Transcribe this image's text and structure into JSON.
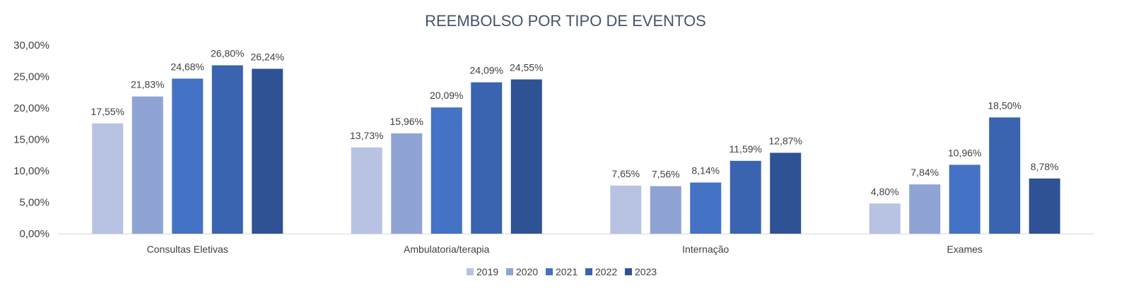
{
  "chart_data": {
    "type": "bar",
    "title": "REEMBOLSO POR TIPO DE EVENTOS",
    "xlabel": "",
    "ylabel": "",
    "categories": [
      "Consultas Eletivas",
      "Ambulatoria/terapia",
      "Internação",
      "Exames"
    ],
    "series": [
      {
        "name": "2019",
        "color": "#b8c3e3",
        "values": [
          17.55,
          13.73,
          7.65,
          4.8
        ],
        "labels": [
          "17,55%",
          "13,73%",
          "7,65%",
          "4,80%"
        ]
      },
      {
        "name": "2020",
        "color": "#8fa3d5",
        "values": [
          21.83,
          15.96,
          7.56,
          7.84
        ],
        "labels": [
          "21,83%",
          "15,96%",
          "7,56%",
          "7,84%"
        ]
      },
      {
        "name": "2021",
        "color": "#4472c4",
        "values": [
          24.68,
          20.09,
          8.14,
          10.96
        ],
        "labels": [
          "24,68%",
          "20,09%",
          "8,14%",
          "10,96%"
        ]
      },
      {
        "name": "2022",
        "color": "#3a63b0",
        "values": [
          26.8,
          24.09,
          11.59,
          18.5
        ],
        "labels": [
          "26,80%",
          "24,09%",
          "11,59%",
          "18,50%"
        ]
      },
      {
        "name": "2023",
        "color": "#2f5295",
        "values": [
          26.24,
          24.55,
          12.87,
          8.78
        ],
        "labels": [
          "26,24%",
          "24,55%",
          "12,87%",
          "8,78%"
        ]
      }
    ],
    "ylim": [
      0,
      30
    ],
    "yticks": [
      "0,00%",
      "5,00%",
      "10,00%",
      "15,00%",
      "20,00%",
      "25,00%",
      "30,00%"
    ],
    "grid": false,
    "legend_position": "bottom-center"
  }
}
